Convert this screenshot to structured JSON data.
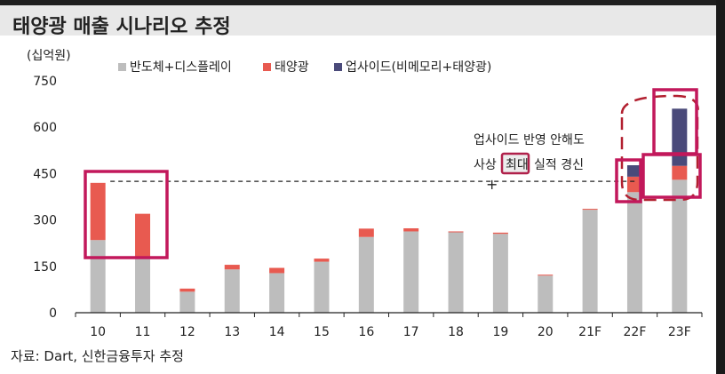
{
  "title": "태양광 매출 시나리오 추정",
  "source": "자료: Dart, 신한금융투자 추정",
  "chart_data": {
    "type": "bar",
    "stacked": true,
    "unit_label": "(십억원)",
    "categories": [
      "10",
      "11",
      "12",
      "13",
      "14",
      "15",
      "16",
      "17",
      "18",
      "19",
      "20",
      "21F",
      "22F",
      "23F"
    ],
    "series": [
      {
        "name": "반도체+디스플레이",
        "color": "#bdbdbd",
        "values": [
          235,
          175,
          68,
          140,
          128,
          165,
          245,
          263,
          260,
          255,
          120,
          333,
          390,
          430
        ]
      },
      {
        "name": "태양광",
        "color": "#e85a50",
        "values": [
          185,
          145,
          10,
          15,
          17,
          10,
          27,
          10,
          3,
          4,
          3,
          3,
          50,
          45
        ]
      },
      {
        "name": "업사이드(비메모리+태양광)",
        "color": "#4a4a7a",
        "values": [
          0,
          0,
          0,
          0,
          0,
          0,
          0,
          0,
          0,
          0,
          0,
          0,
          37,
          185
        ]
      }
    ],
    "ylim": [
      0,
      750
    ],
    "yticks": [
      0,
      150,
      300,
      450,
      600,
      750
    ],
    "reference_line": 425,
    "annotation": [
      "업사이드 반영 안해도",
      "사상",
      "최대",
      "실적 경신"
    ]
  }
}
